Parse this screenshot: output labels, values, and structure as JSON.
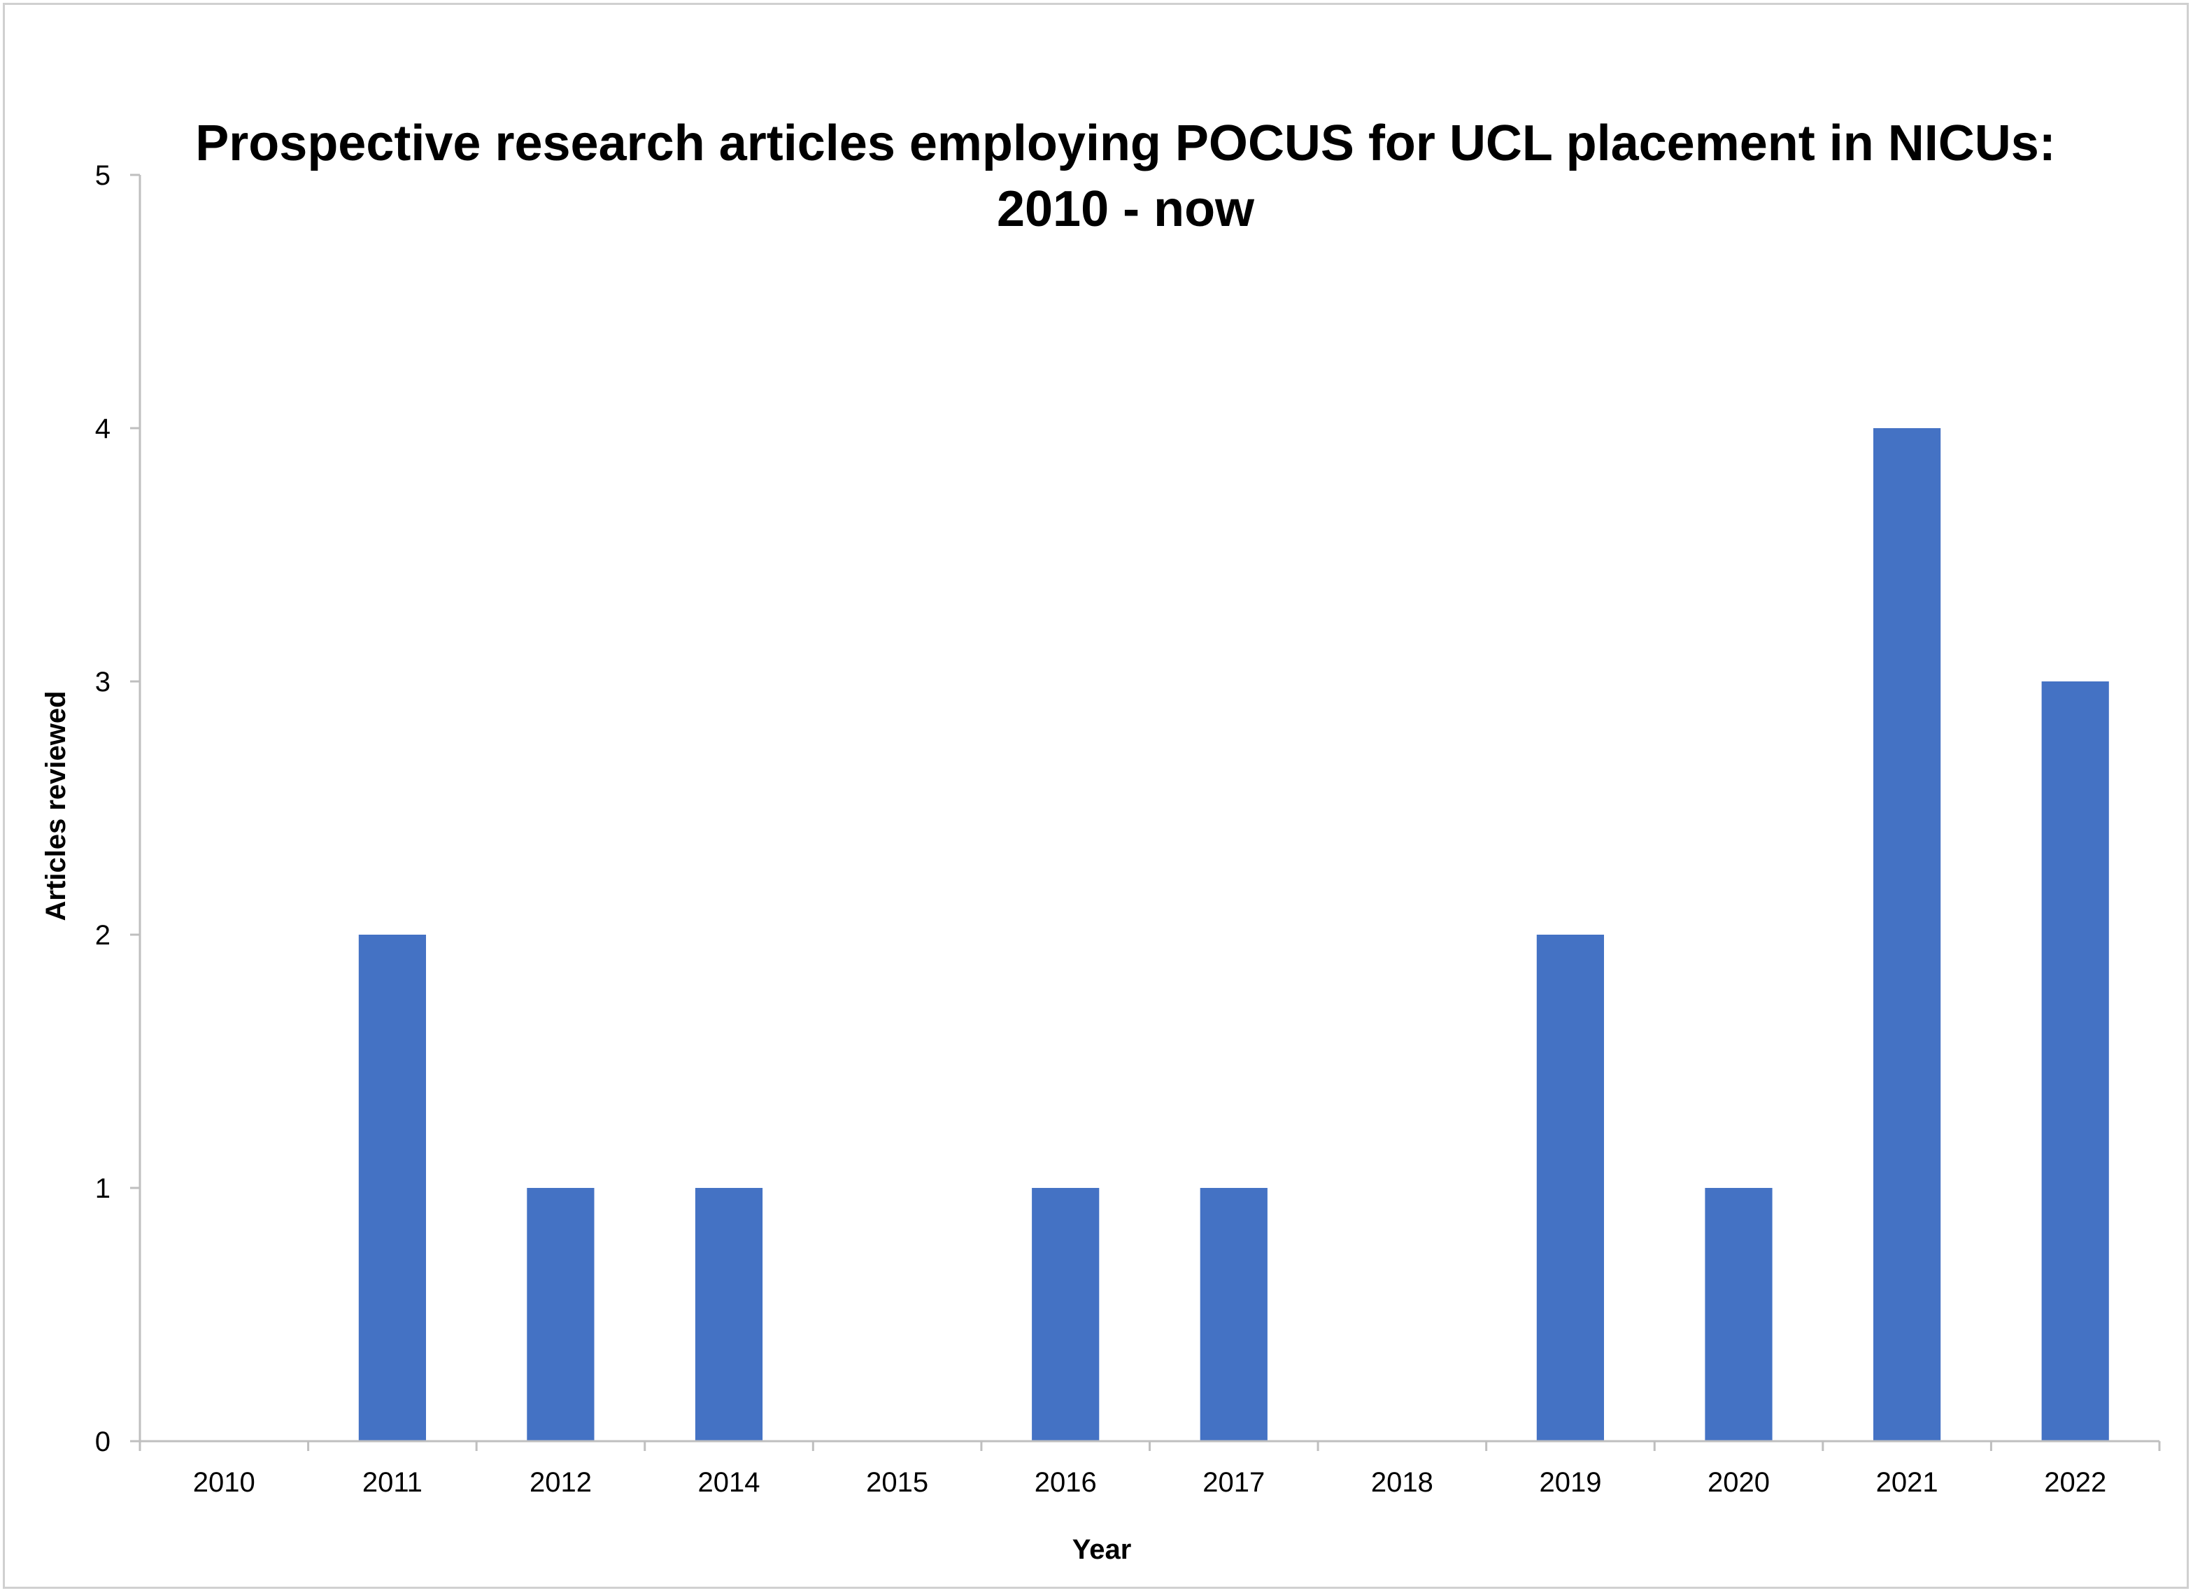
{
  "chart_data": {
    "type": "bar",
    "title_lines": [
      "Prospective research articles employing POCUS for UCL placement in NICUs:",
      "2010 - now"
    ],
    "xlabel": "Year",
    "ylabel": "Articles reviewed",
    "categories": [
      "2010",
      "2011",
      "2012",
      "2014",
      "2015",
      "2016",
      "2017",
      "2018",
      "2019",
      "2020",
      "2021",
      "2022"
    ],
    "values": [
      0,
      2,
      1,
      1,
      0,
      1,
      1,
      0,
      2,
      1,
      4,
      3
    ],
    "ylim": [
      0,
      5
    ],
    "yticks": [
      "0",
      "1",
      "2",
      "3",
      "4",
      "5"
    ],
    "grid": false,
    "legend": "none",
    "bar_color": "#4472C4",
    "axis_color": "#BFBFBF"
  }
}
